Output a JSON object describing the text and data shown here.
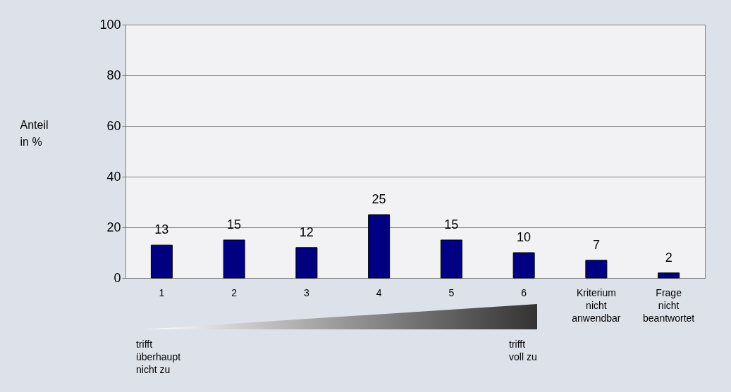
{
  "chart_data": {
    "type": "bar",
    "ylabel": "Anteil in %",
    "categories": [
      "1",
      "2",
      "3",
      "4",
      "5",
      "6",
      "Kriterium nicht anwendbar",
      "Frage nicht beantwortet"
    ],
    "values": [
      13,
      15,
      12,
      25,
      15,
      10,
      7,
      2
    ],
    "color": "#000080",
    "ylim": [
      0,
      100
    ],
    "yticks": [
      0,
      20,
      40,
      60,
      80,
      100
    ],
    "grid": "y",
    "data_labels": true,
    "annotations": [
      "trifft überhaupt nicht zu",
      "trifft voll zu"
    ]
  }
}
